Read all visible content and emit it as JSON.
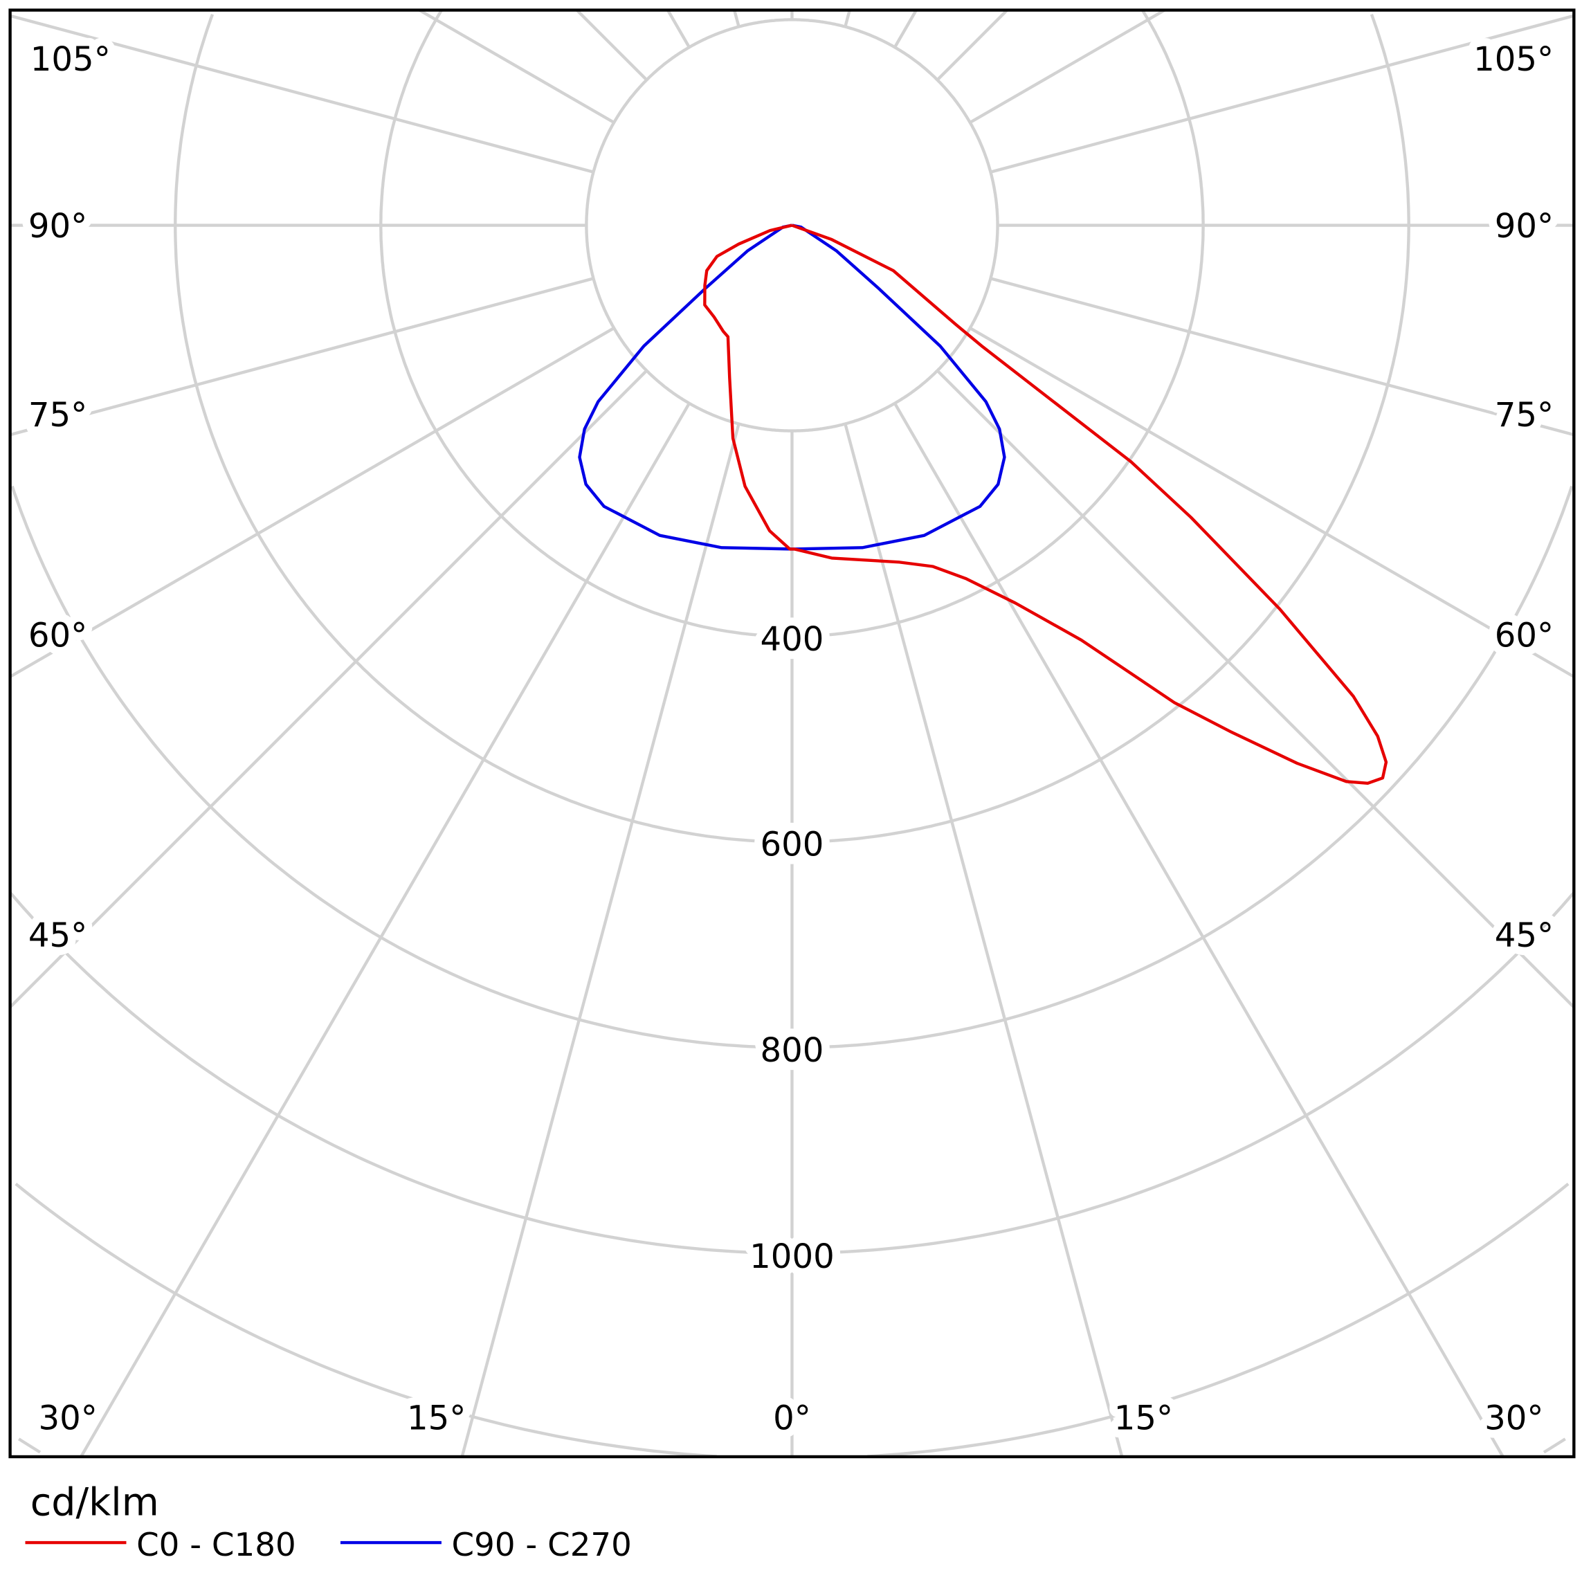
{
  "chart_data": {
    "type": "polar",
    "unit_label": "cd/klm",
    "angle_convention": "gamma from nadir (0° = down)",
    "radial_max_visible": 1400,
    "radial_rings": [
      200,
      400,
      600,
      800,
      1000,
      1200,
      1400
    ],
    "radial_tick_labels": [
      "400",
      "600",
      "800",
      "1000"
    ],
    "radial_tick_values": [
      400,
      600,
      800,
      1000
    ],
    "angle_step": 15,
    "angle_labels": {
      "left": [
        "105°",
        "90°",
        "75°",
        "60°",
        "45°",
        "30°"
      ],
      "bottom": [
        "15°",
        "0°",
        "15°",
        "30°"
      ],
      "right": [
        "105°",
        "90°",
        "75°",
        "60°",
        "45°"
      ]
    },
    "grid": true,
    "legend_placement": "bottom-left",
    "series": [
      {
        "name": "C0 - C180",
        "color": "#e60000",
        "C0": [
          [
            0.4,
            315
          ],
          [
            6.8,
            326
          ],
          [
            17.7,
            344
          ],
          [
            22.4,
            359
          ],
          [
            26.2,
            383
          ],
          [
            30.6,
            427
          ],
          [
            34.9,
            492
          ],
          [
            38.7,
            595
          ],
          [
            40.9,
            652
          ],
          [
            43.2,
            718
          ],
          [
            44.9,
            764
          ],
          [
            45.9,
            780
          ],
          [
            46.9,
            787
          ],
          [
            47.9,
            779
          ],
          [
            48.9,
            756
          ],
          [
            50.0,
            713
          ],
          [
            51.8,
            604
          ],
          [
            53.8,
            481
          ],
          [
            55.1,
            402
          ],
          [
            57.5,
            220
          ],
          [
            58.8,
            186
          ],
          [
            65.9,
            108
          ],
          [
            70.3,
            41
          ],
          [
            90,
            0
          ]
        ],
        "C180": [
          [
            0.4,
            315
          ],
          [
            4.2,
            298
          ],
          [
            10.2,
            258
          ],
          [
            15.5,
            215
          ],
          [
            22.3,
            160
          ],
          [
            29.9,
            125
          ],
          [
            32.9,
            123
          ],
          [
            40.4,
            117
          ],
          [
            47.6,
            115
          ],
          [
            55.4,
            103
          ],
          [
            62.0,
            94
          ],
          [
            67.5,
            79
          ],
          [
            70.6,
            55
          ],
          [
            76.5,
            22
          ],
          [
            90,
            0
          ]
        ]
      },
      {
        "name": "C90 - C270",
        "color": "#0000e6",
        "C90": [
          [
            0,
            315
          ],
          [
            12.3,
            321
          ],
          [
            23.1,
            328
          ],
          [
            33.8,
            329
          ],
          [
            38.5,
            322
          ],
          [
            42.5,
            306
          ],
          [
            45.5,
            283
          ],
          [
            47.7,
            255
          ],
          [
            50.8,
            186
          ],
          [
            54.0,
            103
          ],
          [
            60,
            50
          ],
          [
            78.8,
            9
          ],
          [
            90,
            0
          ]
        ],
        "C270": [
          [
            0,
            315
          ],
          [
            12.3,
            321
          ],
          [
            23.1,
            328
          ],
          [
            33.8,
            329
          ],
          [
            38.5,
            322
          ],
          [
            42.5,
            306
          ],
          [
            45.5,
            283
          ],
          [
            47.7,
            255
          ],
          [
            50.8,
            186
          ],
          [
            54.0,
            103
          ],
          [
            60,
            50
          ],
          [
            78.8,
            9
          ],
          [
            90,
            0
          ]
        ]
      }
    ]
  }
}
